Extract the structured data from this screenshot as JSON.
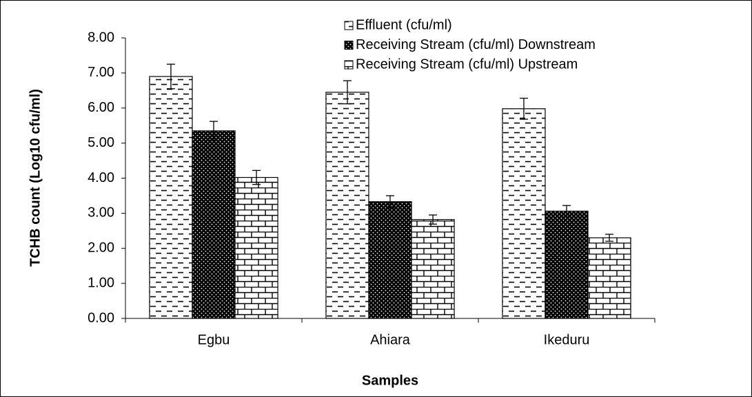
{
  "chart_data": {
    "type": "bar",
    "x_label": "Samples",
    "y_label": "TCHB count (Log10 cfu/ml)",
    "categories": [
      "Egbu",
      "Ahiara",
      "Ikeduru"
    ],
    "series": [
      {
        "name": "Effluent (cfu/ml)",
        "values": [
          6.9,
          6.45,
          5.98
        ],
        "errors": [
          0.35,
          0.33,
          0.3
        ]
      },
      {
        "name": "Receiving Stream (cfu/ml) Downstream",
        "values": [
          5.35,
          3.33,
          3.06
        ],
        "errors": [
          0.27,
          0.17,
          0.16
        ]
      },
      {
        "name": "Receiving Stream (cfu/ml) Upstream",
        "values": [
          4.02,
          2.82,
          2.3
        ],
        "errors": [
          0.2,
          0.13,
          0.1
        ]
      }
    ],
    "ylim": [
      0,
      8
    ],
    "yticks": [
      {
        "value": 0,
        "label": "0.00"
      },
      {
        "value": 1,
        "label": "1.00"
      },
      {
        "value": 2,
        "label": "2.00"
      },
      {
        "value": 3,
        "label": "3.00"
      },
      {
        "value": 4,
        "label": "4.00"
      },
      {
        "value": 5,
        "label": "5.00"
      },
      {
        "value": 6,
        "label": "6.00"
      },
      {
        "value": 7,
        "label": "7.00"
      },
      {
        "value": 8,
        "label": "8.00"
      }
    ],
    "grid": false,
    "legend": "top"
  }
}
